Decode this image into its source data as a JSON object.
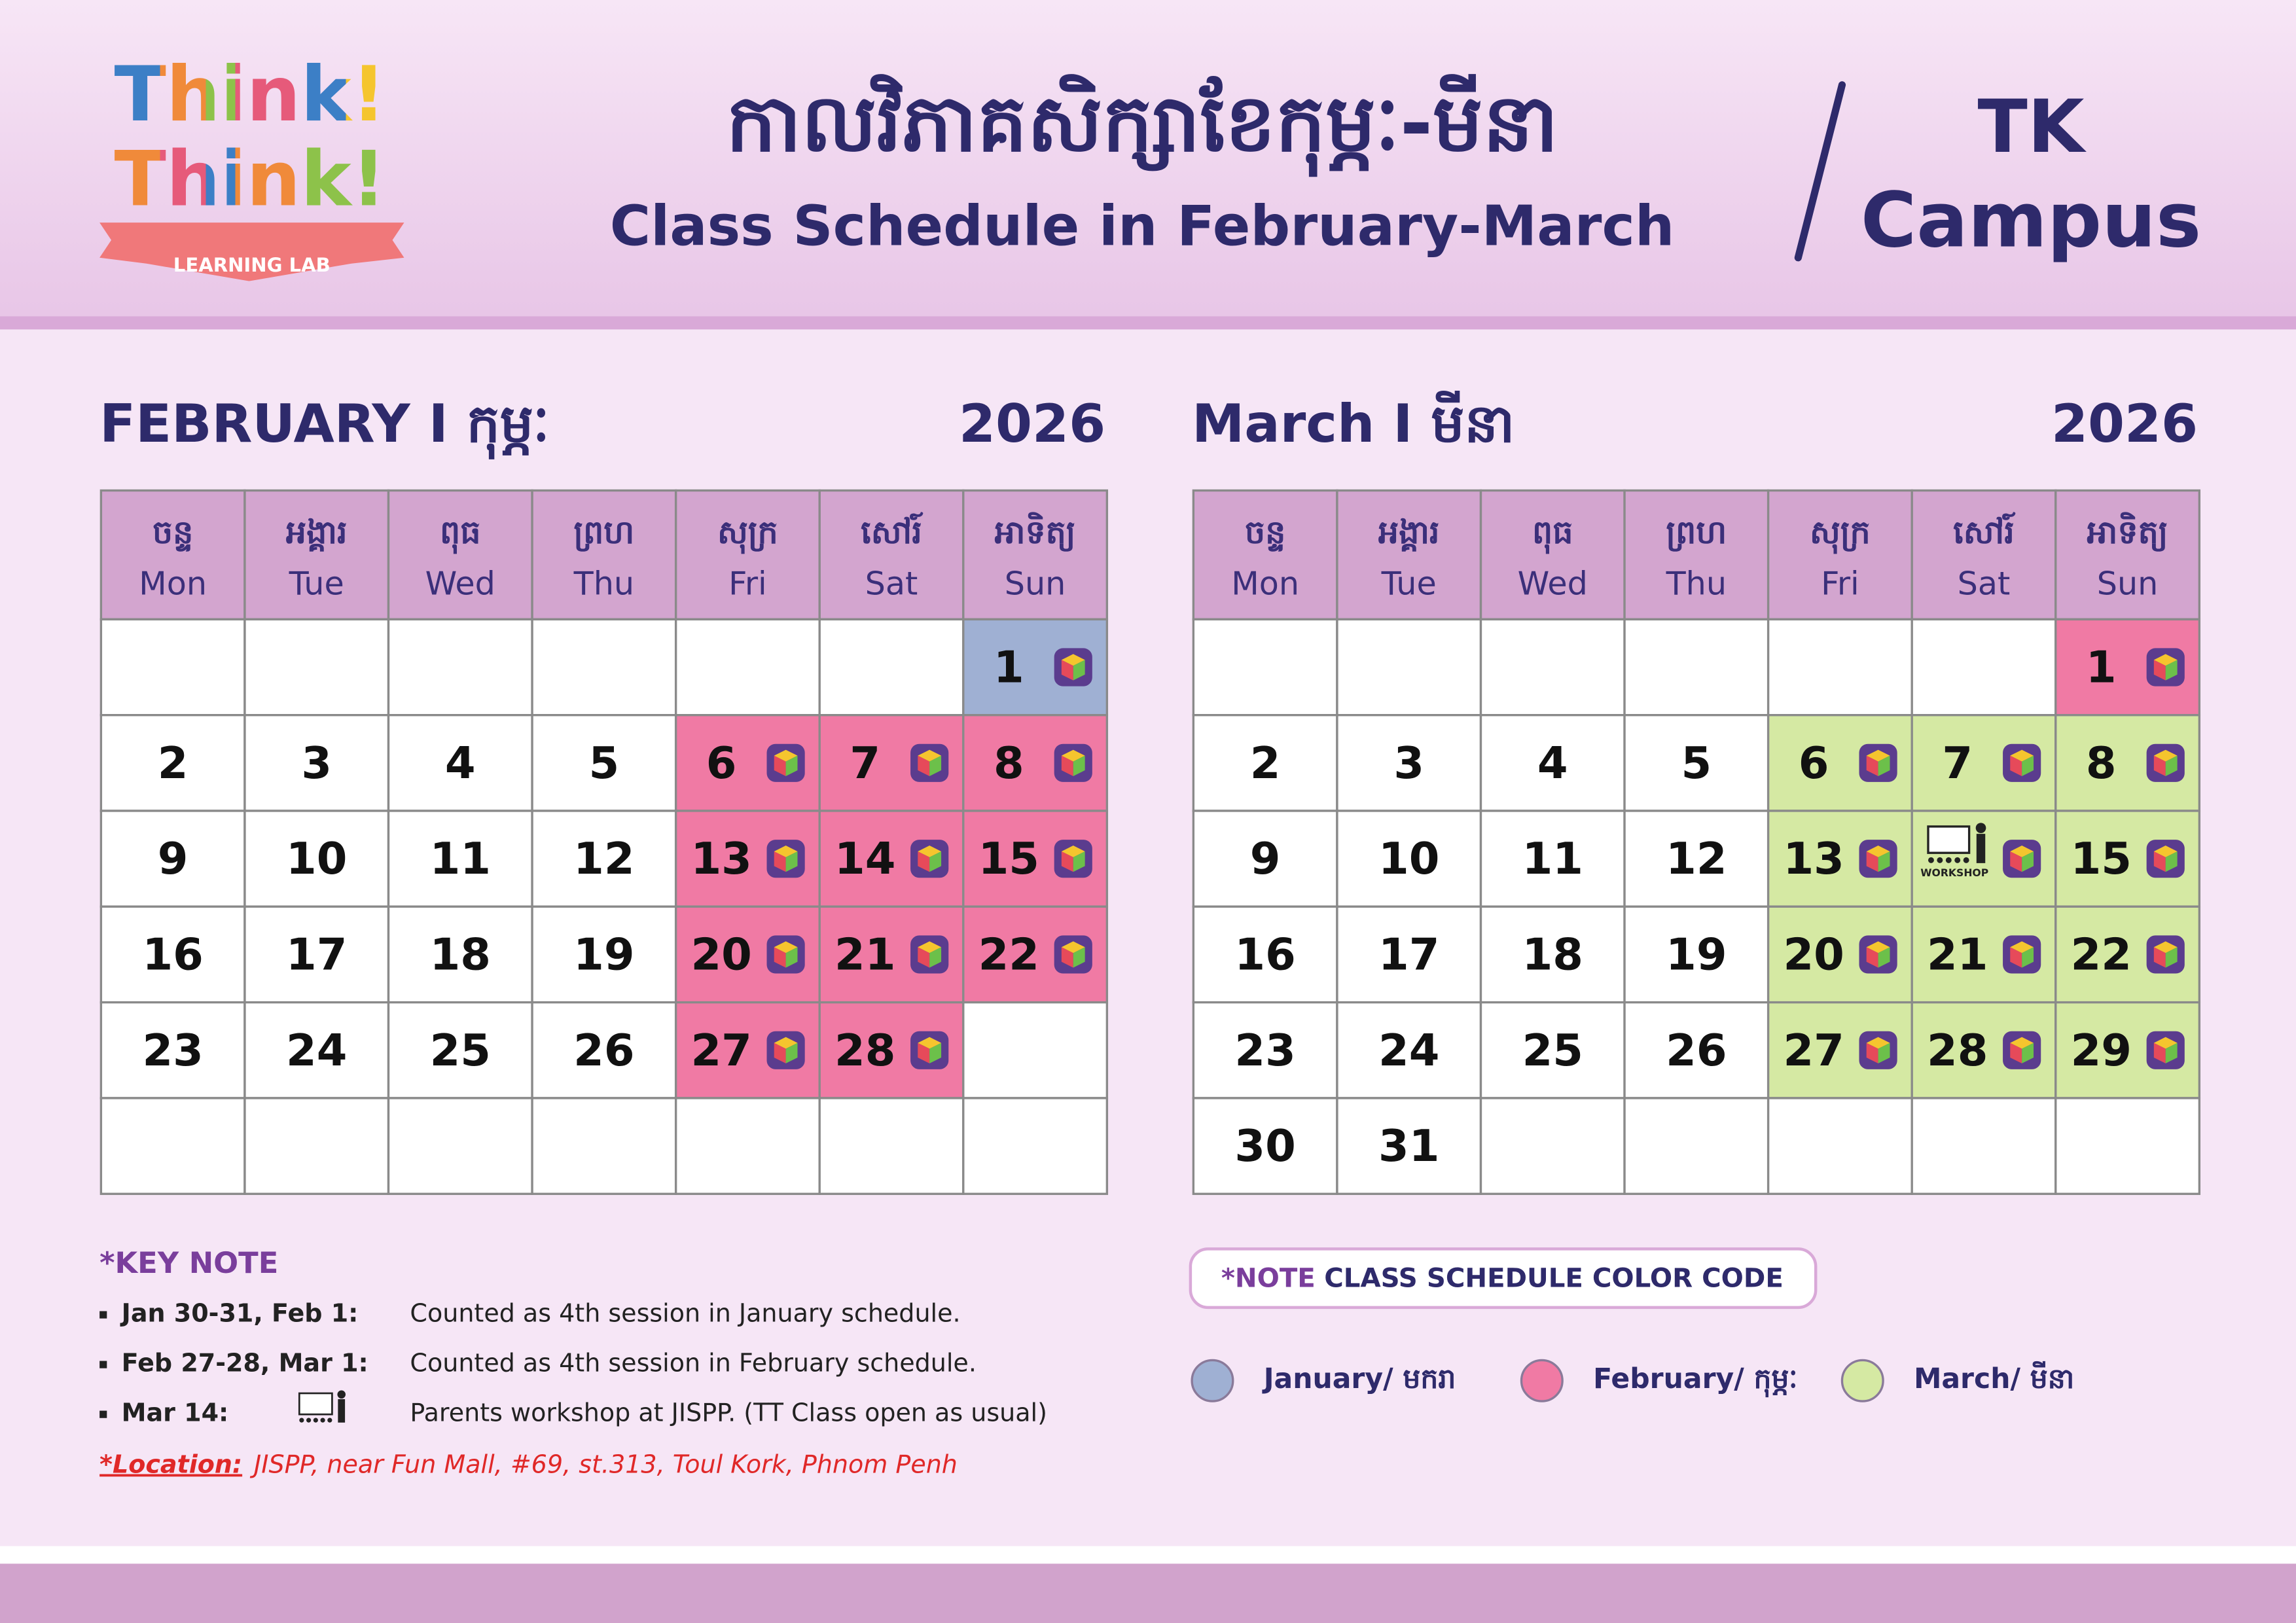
{
  "header": {
    "logo_line1": "Think!",
    "logo_line2": "Think!",
    "logo_ribbon": "LEARNING LAB",
    "title_km": "កាលវិភាគសិក្សាខែកុម្ភៈ-មីនា",
    "title_en": "Class Schedule in February-March",
    "campus_line1": "TK",
    "campus_line2": "Campus"
  },
  "months": [
    {
      "title": "FEBRUARY I កុម្ភៈ",
      "year": "2026",
      "weekdays": [
        {
          "km": "ចន្ទ",
          "en": "Mon"
        },
        {
          "km": "អង្គារ",
          "en": "Tue"
        },
        {
          "km": "ពុធ",
          "en": "Wed"
        },
        {
          "km": "ព្រហ",
          "en": "Thu"
        },
        {
          "km": "សុក្រ",
          "en": "Fri"
        },
        {
          "km": "សៅរ៍",
          "en": "Sat"
        },
        {
          "km": "អាទិត្យ",
          "en": "Sun"
        }
      ],
      "weeks": [
        [
          null,
          null,
          null,
          null,
          null,
          null,
          {
            "day": 1,
            "color": "#9fb0d3"
          }
        ],
        [
          {
            "day": 2
          },
          {
            "day": 3
          },
          {
            "day": 4
          },
          {
            "day": 5
          },
          {
            "day": 6,
            "color": "#f07aa4"
          },
          {
            "day": 7,
            "color": "#f07aa4"
          },
          {
            "day": 8,
            "color": "#f07aa4"
          }
        ],
        [
          {
            "day": 9
          },
          {
            "day": 10
          },
          {
            "day": 11
          },
          {
            "day": 12
          },
          {
            "day": 13,
            "color": "#f07aa4"
          },
          {
            "day": 14,
            "color": "#f07aa4"
          },
          {
            "day": 15,
            "color": "#f07aa4"
          }
        ],
        [
          {
            "day": 16
          },
          {
            "day": 17
          },
          {
            "day": 18
          },
          {
            "day": 19
          },
          {
            "day": 20,
            "color": "#f07aa4"
          },
          {
            "day": 21,
            "color": "#f07aa4"
          },
          {
            "day": 22,
            "color": "#f07aa4"
          }
        ],
        [
          {
            "day": 23
          },
          {
            "day": 24
          },
          {
            "day": 25
          },
          {
            "day": 26
          },
          {
            "day": 27,
            "color": "#f07aa4"
          },
          {
            "day": 28,
            "color": "#f07aa4"
          },
          null
        ],
        [
          null,
          null,
          null,
          null,
          null,
          null,
          null
        ]
      ]
    },
    {
      "title": "March I មីនា",
      "year": "2026",
      "weekdays": [
        {
          "km": "ចន្ទ",
          "en": "Mon"
        },
        {
          "km": "អង្គារ",
          "en": "Tue"
        },
        {
          "km": "ពុធ",
          "en": "Wed"
        },
        {
          "km": "ព្រហ",
          "en": "Thu"
        },
        {
          "km": "សុក្រ",
          "en": "Fri"
        },
        {
          "km": "សៅរ៍",
          "en": "Sat"
        },
        {
          "km": "អាទិត្យ",
          "en": "Sun"
        }
      ],
      "weeks": [
        [
          null,
          null,
          null,
          null,
          null,
          null,
          {
            "day": 1,
            "color": "#f07aa4"
          }
        ],
        [
          {
            "day": 2
          },
          {
            "day": 3
          },
          {
            "day": 4
          },
          {
            "day": 5
          },
          {
            "day": 6,
            "color": "#d5e9a3"
          },
          {
            "day": 7,
            "color": "#d5e9a3"
          },
          {
            "day": 8,
            "color": "#d5e9a3"
          }
        ],
        [
          {
            "day": 9
          },
          {
            "day": 10
          },
          {
            "day": 11
          },
          {
            "day": 12
          },
          {
            "day": 13,
            "color": "#d5e9a3"
          },
          {
            "label": "WORKSHOP",
            "color": "#d5e9a3"
          },
          {
            "day": 15,
            "color": "#d5e9a3"
          }
        ],
        [
          {
            "day": 16
          },
          {
            "day": 17
          },
          {
            "day": 18
          },
          {
            "day": 19
          },
          {
            "day": 20,
            "color": "#d5e9a3"
          },
          {
            "day": 21,
            "color": "#d5e9a3"
          },
          {
            "day": 22,
            "color": "#d5e9a3"
          }
        ],
        [
          {
            "day": 23
          },
          {
            "day": 24
          },
          {
            "day": 25
          },
          {
            "day": 26
          },
          {
            "day": 27,
            "color": "#d5e9a3"
          },
          {
            "day": 28,
            "color": "#d5e9a3"
          },
          {
            "day": 29,
            "color": "#d5e9a3"
          }
        ],
        [
          {
            "day": 30
          },
          {
            "day": 31
          },
          null,
          null,
          null,
          null,
          null
        ]
      ]
    }
  ],
  "key_note": {
    "title": "*KEY NOTE",
    "items": [
      {
        "label": "Jan 30-31, Feb 1:",
        "text": "Counted as 4th session in January schedule."
      },
      {
        "label": "Feb 27-28, Mar 1:",
        "text": "Counted as 4th session in February schedule."
      },
      {
        "label": "Mar 14:",
        "text": "Parents workshop at JISPP.  (TT Class open as usual)",
        "icon": "workshop"
      }
    ],
    "location_label": "*Location:",
    "location": "JISPP, near Fun Mall, #69, st.313, Toul Kork, Phnom Penh"
  },
  "color_code": {
    "note": "*NOTE",
    "title": "CLASS SCHEDULE COLOR CODE",
    "items": [
      {
        "label": "January/ មករា",
        "color": "#9fb0d3"
      },
      {
        "label": "February/ កុម្ភៈ",
        "color": "#f07aa4"
      },
      {
        "label": "March/ មីនា",
        "color": "#d5e9a3"
      }
    ]
  }
}
